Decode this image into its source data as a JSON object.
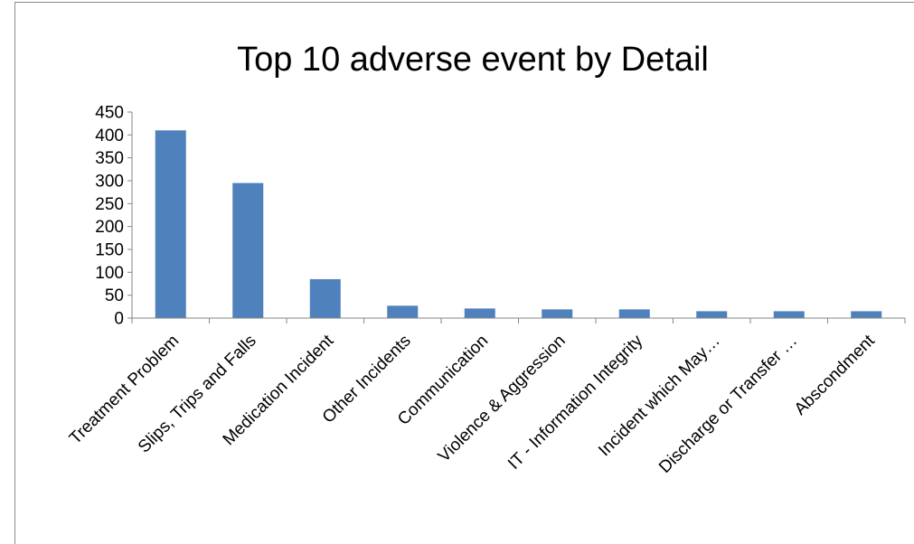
{
  "chart_data": {
    "type": "bar",
    "title": "Top 10 adverse event by Detail",
    "categories": [
      "Treatment Problem",
      "Slips, Trips and Falls",
      "Medication Incident",
      "Other Incidents",
      "Communication",
      "Violence & Aggression",
      "IT - Information Integrity",
      "Incident which May…",
      "Discharge or Transfer …",
      "Abscondment"
    ],
    "values": [
      410,
      295,
      85,
      27,
      21,
      19,
      19,
      15,
      15,
      15
    ],
    "y_ticks": [
      "0",
      "50",
      "100",
      "150",
      "200",
      "250",
      "300",
      "350",
      "400",
      "450"
    ],
    "ylim": [
      0,
      450
    ],
    "xlabel": "",
    "ylabel": "",
    "grid": false,
    "legend": "none",
    "bar_color": "#4f81bd"
  }
}
